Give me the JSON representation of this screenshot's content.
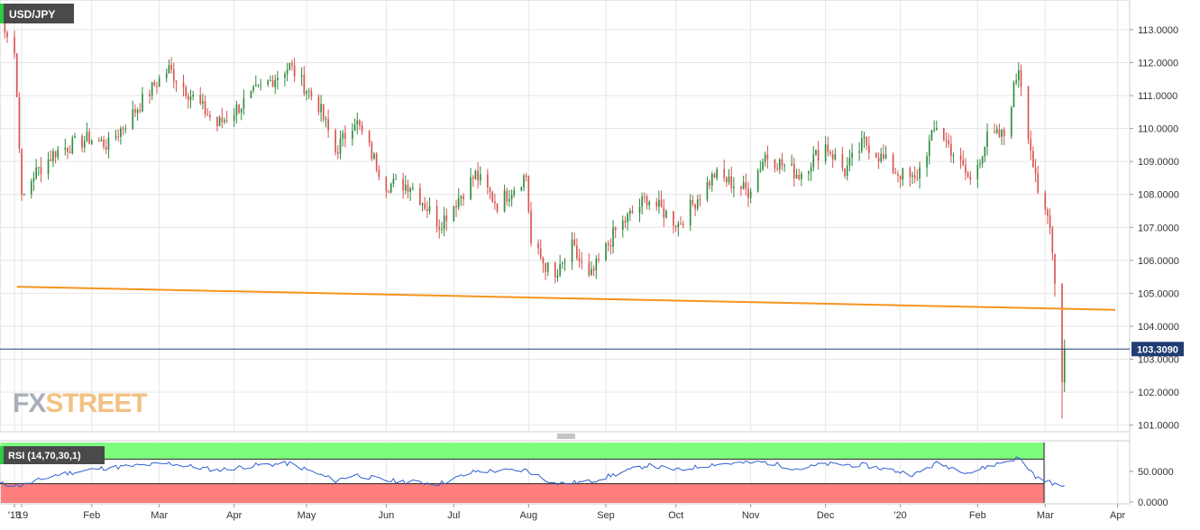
{
  "chart_data": {
    "type": "candlestick",
    "title": "USD/JPY",
    "watermark": "FXSTREET",
    "colors": {
      "up": "#2e8b3e",
      "down": "#d9534f",
      "trendline": "#f7931e",
      "price_line": "#1f3d73",
      "rsi_line": "#2f5fd0",
      "rsi_overbought_zone": "#7dfc7d",
      "rsi_oversold_zone": "#ff7f7f",
      "grid": "#e6e6e6",
      "watermark_fx": "#a9aeb8",
      "watermark_street": "#f2c183"
    },
    "price_axis": {
      "ylim": [
        100.8,
        113.9
      ],
      "ticks": [
        "113.0000",
        "112.0000",
        "111.0000",
        "110.0000",
        "109.0000",
        "108.0000",
        "107.0000",
        "106.0000",
        "105.0000",
        "104.0000",
        "103.0000",
        "102.0000",
        "101.0000"
      ],
      "tick_values": [
        113,
        112,
        111,
        110,
        109,
        108,
        107,
        106,
        105,
        104,
        103,
        102,
        101
      ],
      "current_price_label": "103.3090",
      "current_price": 103.309
    },
    "x_axis": {
      "start": "2018-12-25",
      "end": "2020-04-06",
      "ticks": [
        {
          "date": "2018-12-31",
          "label": "'18"
        },
        {
          "date": "2019-01-03",
          "label": "'19"
        },
        {
          "date": "2019-02-01",
          "label": "Feb"
        },
        {
          "date": "2019-03-01",
          "label": "Mar"
        },
        {
          "date": "2019-04-01",
          "label": "Apr"
        },
        {
          "date": "2019-05-01",
          "label": "May"
        },
        {
          "date": "2019-06-03",
          "label": "Jun"
        },
        {
          "date": "2019-07-01",
          "label": "Jul"
        },
        {
          "date": "2019-08-01",
          "label": "Aug"
        },
        {
          "date": "2019-09-02",
          "label": "Sep"
        },
        {
          "date": "2019-10-01",
          "label": "Oct"
        },
        {
          "date": "2019-11-01",
          "label": "Nov"
        },
        {
          "date": "2019-12-02",
          "label": "Dec"
        },
        {
          "date": "2020-01-02",
          "label": "'20"
        },
        {
          "date": "2020-02-03",
          "label": "Feb"
        },
        {
          "date": "2020-03-02",
          "label": "Mar"
        },
        {
          "date": "2020-04-01",
          "label": "Apr"
        }
      ]
    },
    "price_path": [
      [
        "2018-12-25",
        113.5
      ],
      [
        "2018-12-31",
        112.3
      ],
      [
        "2019-01-02",
        109.6
      ],
      [
        "2019-01-03",
        107.8
      ],
      [
        "2019-01-08",
        108.6
      ],
      [
        "2019-01-17",
        109.3
      ],
      [
        "2019-01-31",
        109.7
      ],
      [
        "2019-02-08",
        109.5
      ],
      [
        "2019-02-28",
        111.4
      ],
      [
        "2019-03-05",
        111.8
      ],
      [
        "2019-03-13",
        111.1
      ],
      [
        "2019-03-25",
        110.1
      ],
      [
        "2019-04-10",
        111.1
      ],
      [
        "2019-04-24",
        111.9
      ],
      [
        "2019-05-06",
        110.7
      ],
      [
        "2019-05-13",
        109.3
      ],
      [
        "2019-05-21",
        110.3
      ],
      [
        "2019-06-03",
        108.3
      ],
      [
        "2019-06-13",
        108.3
      ],
      [
        "2019-06-25",
        107.1
      ],
      [
        "2019-07-10",
        108.6
      ],
      [
        "2019-07-19",
        107.7
      ],
      [
        "2019-07-31",
        108.6
      ],
      [
        "2019-08-02",
        106.5
      ],
      [
        "2019-08-12",
        105.4
      ],
      [
        "2019-08-19",
        106.4
      ],
      [
        "2019-08-26",
        105.4
      ],
      [
        "2019-09-06",
        106.9
      ],
      [
        "2019-09-19",
        107.9
      ],
      [
        "2019-10-02",
        107.1
      ],
      [
        "2019-10-17",
        108.6
      ],
      [
        "2019-10-31",
        108.1
      ],
      [
        "2019-11-07",
        109.2
      ],
      [
        "2019-11-21",
        108.6
      ],
      [
        "2019-12-02",
        109.5
      ],
      [
        "2019-12-10",
        108.7
      ],
      [
        "2019-12-18",
        109.6
      ],
      [
        "2019-12-31",
        108.7
      ],
      [
        "2020-01-08",
        108.4
      ],
      [
        "2020-01-17",
        110.1
      ],
      [
        "2020-01-31",
        108.4
      ],
      [
        "2020-02-07",
        109.7
      ],
      [
        "2020-02-14",
        109.8
      ],
      [
        "2020-02-20",
        111.9
      ],
      [
        "2020-02-28",
        107.9
      ],
      [
        "2020-03-04",
        107.2
      ],
      [
        "2020-03-06",
        105.3
      ],
      [
        "2020-03-09",
        102.3
      ],
      [
        "2020-03-10",
        103.31
      ]
    ],
    "candle_days": [
      {
        "date": "2020-03-06",
        "open": 106.2,
        "high": 106.2,
        "low": 104.9,
        "close": 105.3
      },
      {
        "date": "2020-03-09",
        "open": 105.3,
        "high": 105.3,
        "low": 101.2,
        "close": 102.3
      },
      {
        "date": "2020-03-10",
        "open": 102.3,
        "high": 103.6,
        "low": 102.0,
        "close": 103.31
      }
    ],
    "trendline": {
      "start": [
        "2019-01-01",
        105.2
      ],
      "end": [
        "2020-03-31",
        104.5
      ]
    },
    "rsi": {
      "label": "RSI (14,70,30,1)",
      "ylim": [
        -3,
        100
      ],
      "ticks": [
        "50.0000",
        "0.0000"
      ],
      "tick_values": [
        50,
        0
      ],
      "overbought": 70,
      "oversold": 30,
      "path": [
        [
          "2018-12-25",
          30
        ],
        [
          "2019-01-03",
          27
        ],
        [
          "2019-01-18",
          45
        ],
        [
          "2019-02-05",
          55
        ],
        [
          "2019-02-15",
          58
        ],
        [
          "2019-03-05",
          63
        ],
        [
          "2019-03-25",
          52
        ],
        [
          "2019-04-10",
          60
        ],
        [
          "2019-04-24",
          63
        ],
        [
          "2019-05-13",
          35
        ],
        [
          "2019-05-21",
          45
        ],
        [
          "2019-06-03",
          35
        ],
        [
          "2019-06-25",
          30
        ],
        [
          "2019-07-10",
          50
        ],
        [
          "2019-07-31",
          52
        ],
        [
          "2019-08-12",
          30
        ],
        [
          "2019-08-26",
          33
        ],
        [
          "2019-09-19",
          60
        ],
        [
          "2019-10-02",
          52
        ],
        [
          "2019-10-17",
          62
        ],
        [
          "2019-11-07",
          65
        ],
        [
          "2019-11-21",
          54
        ],
        [
          "2019-12-02",
          62
        ],
        [
          "2019-12-18",
          60
        ],
        [
          "2020-01-08",
          45
        ],
        [
          "2020-01-17",
          63
        ],
        [
          "2020-01-31",
          48
        ],
        [
          "2020-02-07",
          58
        ],
        [
          "2020-02-20",
          72
        ],
        [
          "2020-02-28",
          38
        ],
        [
          "2020-03-06",
          30
        ],
        [
          "2020-03-09",
          22
        ],
        [
          "2020-03-10",
          27
        ]
      ]
    }
  }
}
